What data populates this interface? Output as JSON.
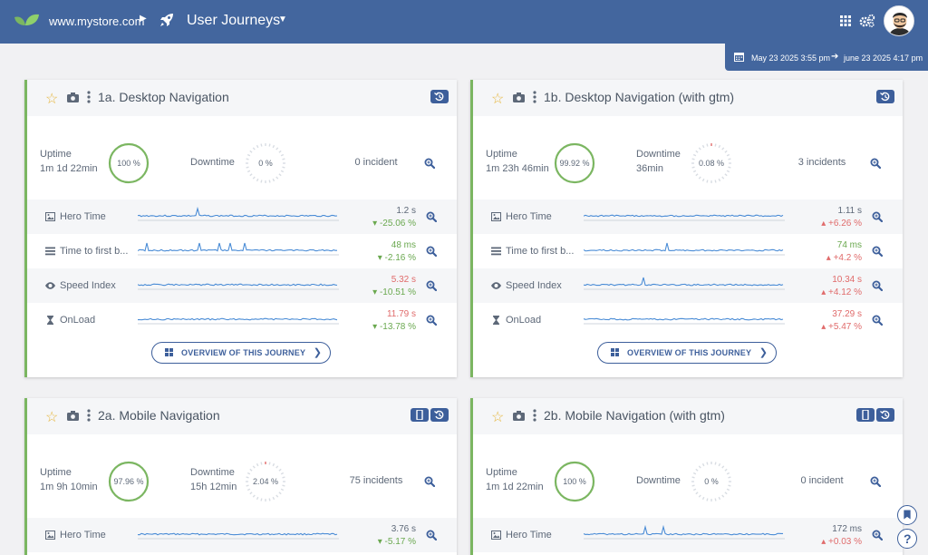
{
  "header": {
    "site": "www.mystore.com",
    "title": "User Journeys",
    "colors": {
      "bar": "#43669e",
      "accent": "#3d5f9b",
      "good": "#6aa84f",
      "bad": "#e06b6b"
    }
  },
  "daterange": {
    "from": "May 23 2025 3:55 pm",
    "to": "june 23 2025 4:17 pm"
  },
  "common": {
    "uptime_label": "Uptime",
    "downtime_label": "Downtime",
    "overview_label": "OVERVIEW OF THIS JOURNEY"
  },
  "cards": [
    {
      "title": "1a. Desktop Navigation",
      "device_badge": false,
      "uptime_duration": "1m 1d 22min",
      "uptime_pct": "100 %",
      "downtime_duration": "",
      "downtime_pct": "0 %",
      "incidents": "0 incident",
      "metrics": [
        {
          "label": "Hero Time",
          "icon": "image-icon",
          "value": "1.2 s",
          "value_color": "gray",
          "delta": "-25.06 %",
          "trend": "down"
        },
        {
          "label": "Time to first b...",
          "icon": "list-icon",
          "value": "48 ms",
          "value_color": "green",
          "delta": "-2.16 %",
          "trend": "down"
        },
        {
          "label": "Speed Index",
          "icon": "eye-icon",
          "value": "5.32 s",
          "value_color": "red",
          "delta": "-10.51 %",
          "trend": "down"
        },
        {
          "label": "OnLoad",
          "icon": "hourglass-icon",
          "value": "11.79 s",
          "value_color": "red",
          "delta": "-13.78 %",
          "trend": "down"
        }
      ]
    },
    {
      "title": "1b. Desktop Navigation (with gtm)",
      "device_badge": false,
      "uptime_duration": "1m 23h 46min",
      "uptime_pct": "99.92 %",
      "downtime_duration": "36min",
      "downtime_pct": "0.08 %",
      "incidents": "3 incidents",
      "metrics": [
        {
          "label": "Hero Time",
          "icon": "image-icon",
          "value": "1.11 s",
          "value_color": "gray",
          "delta": "+6.26 %",
          "trend": "up"
        },
        {
          "label": "Time to first b...",
          "icon": "list-icon",
          "value": "74 ms",
          "value_color": "green",
          "delta": "+4.2 %",
          "trend": "up"
        },
        {
          "label": "Speed Index",
          "icon": "eye-icon",
          "value": "10.34 s",
          "value_color": "red",
          "delta": "+4.12 %",
          "trend": "up"
        },
        {
          "label": "OnLoad",
          "icon": "hourglass-icon",
          "value": "37.29 s",
          "value_color": "red",
          "delta": "+5.47 %",
          "trend": "up"
        }
      ]
    },
    {
      "title": "2a. Mobile Navigation",
      "device_badge": true,
      "uptime_duration": "1m 9h 10min",
      "uptime_pct": "97.96 %",
      "downtime_duration": "15h 12min",
      "downtime_pct": "2.04 %",
      "incidents": "75 incidents",
      "metrics": [
        {
          "label": "Hero Time",
          "icon": "image-icon",
          "value": "3.76 s",
          "value_color": "gray",
          "delta": "-5.17 %",
          "trend": "down"
        }
      ]
    },
    {
      "title": "2b. Mobile Navigation (with gtm)",
      "device_badge": true,
      "uptime_duration": "1m 1d 22min",
      "uptime_pct": "100 %",
      "downtime_duration": "",
      "downtime_pct": "0 %",
      "incidents": "0 incident",
      "metrics": [
        {
          "label": "Hero Time",
          "icon": "image-icon",
          "value": "172 ms",
          "value_color": "gray",
          "delta": "+0.03 %",
          "trend": "up"
        }
      ]
    }
  ]
}
